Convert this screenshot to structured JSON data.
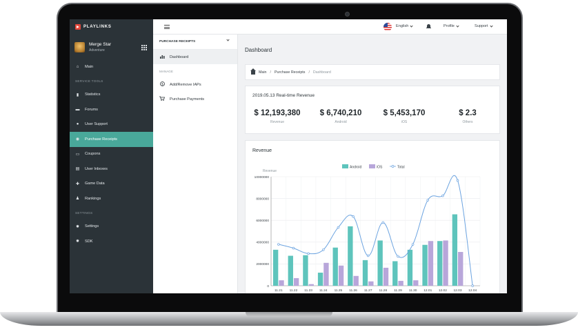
{
  "brand": {
    "name": "PLAYLINKS"
  },
  "user": {
    "name": "Merge Star",
    "role": "Adventure"
  },
  "sidebar": {
    "items_top": [
      {
        "label": "Main",
        "icon": "home-icon"
      }
    ],
    "section_service": "SERVICE TOOLS",
    "items_service": [
      {
        "label": "Statistics",
        "icon": "bar-chart-icon"
      },
      {
        "label": "Forums",
        "icon": "chat-icon"
      },
      {
        "label": "User Support",
        "icon": "user-icon"
      },
      {
        "label": "Purchase Receipts",
        "icon": "receipt-icon",
        "active": true
      },
      {
        "label": "Coupons",
        "icon": "coupon-icon"
      },
      {
        "label": "User Inboxes",
        "icon": "inbox-icon"
      },
      {
        "label": "Game Data",
        "icon": "gamepad-icon"
      },
      {
        "label": "Rankings",
        "icon": "rankings-icon"
      }
    ],
    "section_settings": "SETTINGS",
    "items_settings": [
      {
        "label": "Settings",
        "icon": "gear-icon"
      },
      {
        "label": "SDK",
        "icon": "gear-icon"
      }
    ]
  },
  "topbar": {
    "language": "English",
    "profile": "Profile",
    "support": "Support"
  },
  "subpanel": {
    "header": "PURCHASE RECEIPTS",
    "dashboard": "Dashboard",
    "section_manage": "MANAGE",
    "add_remove": "Add/Remove IAPs",
    "purchase_payments": "Purchase Payments"
  },
  "main": {
    "title": "Dashboard",
    "breadcrumb": {
      "main": "Main",
      "receipts": "Purchase Receipts",
      "current": "Dashboard"
    },
    "revenue_card": {
      "title": "2019.05.13 Real-time Revenue",
      "stats": [
        {
          "value": "$ 12,193,380",
          "label": "Revenue"
        },
        {
          "value": "$ 6,740,210",
          "label": "Android"
        },
        {
          "value": "$ 5,453,170",
          "label": "iOS"
        },
        {
          "value": "$ 2.3",
          "label": "Others"
        }
      ]
    },
    "chart_card": {
      "title": "Revenue"
    }
  },
  "colors": {
    "android": "#5ec4bc",
    "ios": "#b8a6da",
    "total": "#6ba3e0",
    "accent": "#49a89a"
  },
  "chart_data": {
    "type": "bar",
    "ylabel": "Revenue",
    "ylim": [
      0,
      10000000
    ],
    "yticks": [
      0,
      2000000,
      4000000,
      6000000,
      8000000,
      10000000
    ],
    "legend": [
      "Android",
      "iOS",
      "Total"
    ],
    "legend_position": "top-center",
    "categories": [
      "11.21",
      "11.22",
      "11.23",
      "11.24",
      "11.25",
      "11.26",
      "11.27",
      "11.28",
      "11.29",
      "11.30",
      "12.01",
      "12.02",
      "12.03",
      "12.04"
    ],
    "series": [
      {
        "name": "Android",
        "type": "bar",
        "values": [
          3300000,
          2750000,
          2800000,
          1200000,
          3500000,
          5450000,
          2350000,
          4150000,
          2250000,
          3300000,
          3750000,
          4100000,
          6550000,
          0
        ]
      },
      {
        "name": "iOS",
        "type": "bar",
        "values": [
          500000,
          700000,
          150000,
          2100000,
          1850000,
          900000,
          400000,
          1650000,
          450000,
          500000,
          4100000,
          4150000,
          3100000,
          0
        ]
      },
      {
        "name": "Total",
        "type": "line",
        "values": [
          3800000,
          3450000,
          2950000,
          3300000,
          5350000,
          6350000,
          2750000,
          5800000,
          2700000,
          3800000,
          7850000,
          8250000,
          9650000,
          0
        ]
      }
    ]
  }
}
